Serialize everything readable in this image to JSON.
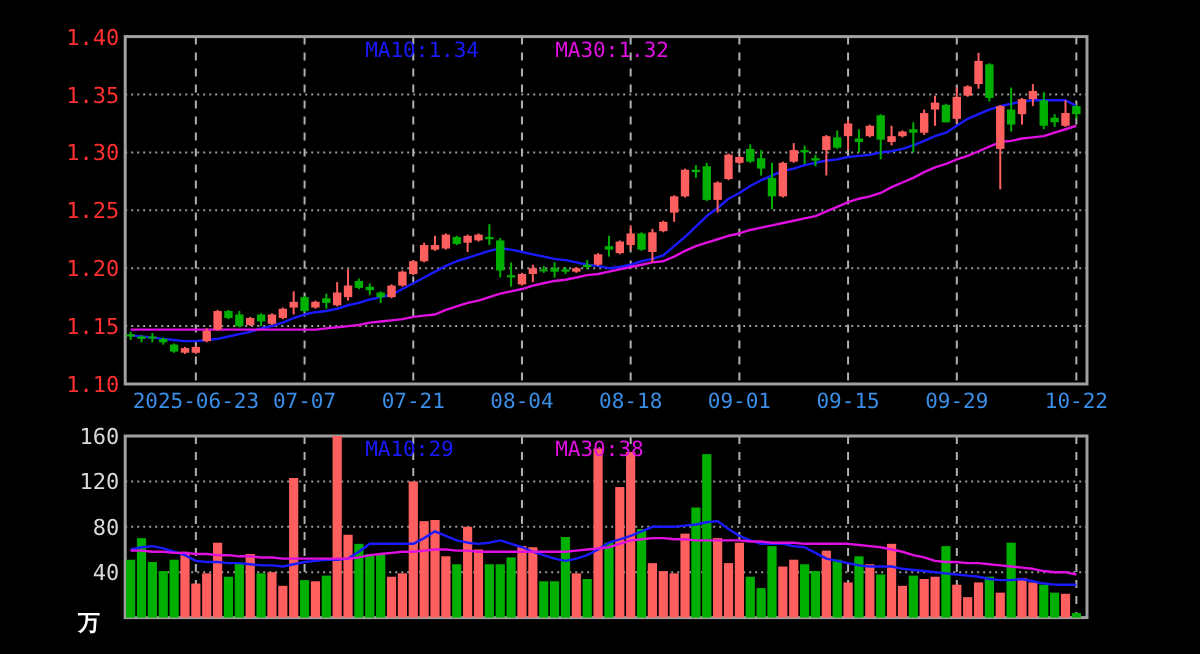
{
  "chart_data": [
    {
      "type": "candlestick",
      "grid": true,
      "legend": "top",
      "ylim": [
        1.1,
        1.4
      ],
      "yticks": [
        {
          "value": 1.1,
          "label": "1.10"
        },
        1.15,
        {
          "value": 1.2,
          "label": "1.20"
        },
        1.25,
        {
          "value": 1.3,
          "label": "1.30"
        },
        1.35,
        {
          "value": 1.4,
          "label": "1.40"
        }
      ],
      "categories": [
        null,
        null,
        null,
        null,
        null,
        null,
        "2025-06-23",
        null,
        null,
        null,
        null,
        null,
        null,
        null,
        null,
        null,
        "07-07",
        null,
        null,
        null,
        null,
        null,
        null,
        null,
        null,
        null,
        "07-21",
        null,
        null,
        null,
        null,
        null,
        null,
        null,
        null,
        null,
        "08-04",
        null,
        null,
        null,
        null,
        null,
        null,
        null,
        null,
        null,
        "08-18",
        null,
        null,
        null,
        null,
        null,
        null,
        null,
        null,
        null,
        "09-01",
        null,
        null,
        null,
        null,
        null,
        null,
        null,
        null,
        null,
        "09-15",
        null,
        null,
        null,
        null,
        null,
        null,
        null,
        null,
        null,
        "09-29",
        null,
        null,
        null,
        null,
        null,
        null,
        null,
        null,
        null,
        null,
        "10-22"
      ],
      "ohlc": [
        [
          1.143,
          1.145,
          1.138,
          1.141
        ],
        [
          1.141,
          1.142,
          1.136,
          1.139
        ],
        [
          1.141,
          1.144,
          1.136,
          1.14
        ],
        [
          1.139,
          1.14,
          1.134,
          1.136
        ],
        [
          1.134,
          1.135,
          1.127,
          1.128
        ],
        [
          1.127,
          1.132,
          1.126,
          1.131
        ],
        [
          1.127,
          1.133,
          1.126,
          1.132
        ],
        [
          1.137,
          1.148,
          1.136,
          1.146
        ],
        [
          1.147,
          1.164,
          1.146,
          1.163
        ],
        [
          1.163,
          1.164,
          1.156,
          1.157
        ],
        [
          1.16,
          1.163,
          1.149,
          1.15
        ],
        [
          1.151,
          1.158,
          1.15,
          1.157
        ],
        [
          1.16,
          1.161,
          1.15,
          1.154
        ],
        [
          1.152,
          1.161,
          1.151,
          1.16
        ],
        [
          1.157,
          1.166,
          1.156,
          1.165
        ],
        [
          1.166,
          1.18,
          1.16,
          1.171
        ],
        [
          1.175,
          1.176,
          1.162,
          1.163
        ],
        [
          1.166,
          1.172,
          1.165,
          1.171
        ],
        [
          1.174,
          1.178,
          1.165,
          1.17
        ],
        [
          1.168,
          1.188,
          1.167,
          1.179
        ],
        [
          1.175,
          1.199,
          1.172,
          1.185
        ],
        [
          1.189,
          1.191,
          1.182,
          1.183
        ],
        [
          1.184,
          1.187,
          1.177,
          1.181
        ],
        [
          1.179,
          1.18,
          1.17,
          1.175
        ],
        [
          1.175,
          1.186,
          1.174,
          1.185
        ],
        [
          1.185,
          1.198,
          1.184,
          1.197
        ],
        [
          1.195,
          1.207,
          1.194,
          1.206
        ],
        [
          1.206,
          1.222,
          1.205,
          1.22
        ],
        [
          1.216,
          1.228,
          1.215,
          1.22
        ],
        [
          1.217,
          1.23,
          1.216,
          1.229
        ],
        [
          1.227,
          1.228,
          1.22,
          1.221
        ],
        [
          1.222,
          1.229,
          1.214,
          1.228
        ],
        [
          1.224,
          1.23,
          1.223,
          1.229
        ],
        [
          1.227,
          1.238,
          1.22,
          1.225
        ],
        [
          1.224,
          1.226,
          1.192,
          1.198
        ],
        [
          1.194,
          1.205,
          1.184,
          1.192
        ],
        [
          1.186,
          1.196,
          1.185,
          1.195
        ],
        [
          1.195,
          1.203,
          1.188,
          1.2
        ],
        [
          1.199,
          1.202,
          1.196,
          1.198
        ],
        [
          1.2,
          1.205,
          1.192,
          1.197
        ],
        [
          1.199,
          1.201,
          1.195,
          1.197
        ],
        [
          1.197,
          1.201,
          1.196,
          1.2
        ],
        [
          1.203,
          1.207,
          1.199,
          1.201
        ],
        [
          1.203,
          1.213,
          1.202,
          1.212
        ],
        [
          1.219,
          1.228,
          1.21,
          1.216
        ],
        [
          1.213,
          1.224,
          1.212,
          1.223
        ],
        [
          1.22,
          1.237,
          1.216,
          1.23
        ],
        [
          1.23,
          1.231,
          1.215,
          1.216
        ],
        [
          1.214,
          1.234,
          1.205,
          1.231
        ],
        [
          1.232,
          1.241,
          1.231,
          1.24
        ],
        [
          1.248,
          1.263,
          1.24,
          1.262
        ],
        [
          1.262,
          1.286,
          1.261,
          1.285
        ],
        [
          1.285,
          1.289,
          1.278,
          1.283
        ],
        [
          1.288,
          1.291,
          1.258,
          1.259
        ],
        [
          1.259,
          1.275,
          1.248,
          1.274
        ],
        [
          1.277,
          1.299,
          1.276,
          1.298
        ],
        [
          1.291,
          1.297,
          1.29,
          1.296
        ],
        [
          1.303,
          1.307,
          1.291,
          1.292
        ],
        [
          1.295,
          1.302,
          1.28,
          1.286
        ],
        [
          1.278,
          1.291,
          1.251,
          1.262
        ],
        [
          1.262,
          1.292,
          1.261,
          1.291
        ],
        [
          1.292,
          1.308,
          1.291,
          1.302
        ],
        [
          1.302,
          1.306,
          1.29,
          1.3
        ],
        [
          1.295,
          1.298,
          1.288,
          1.293
        ],
        [
          1.302,
          1.315,
          1.28,
          1.314
        ],
        [
          1.313,
          1.319,
          1.303,
          1.304
        ],
        [
          1.314,
          1.328,
          1.302,
          1.325
        ],
        [
          1.312,
          1.32,
          1.3,
          1.309
        ],
        [
          1.314,
          1.324,
          1.313,
          1.323
        ],
        [
          1.332,
          1.333,
          1.294,
          1.311
        ],
        [
          1.309,
          1.323,
          1.306,
          1.314
        ],
        [
          1.314,
          1.319,
          1.313,
          1.318
        ],
        [
          1.32,
          1.326,
          1.3,
          1.317
        ],
        [
          1.317,
          1.337,
          1.315,
          1.334
        ],
        [
          1.337,
          1.349,
          1.323,
          1.343
        ],
        [
          1.341,
          1.342,
          1.326,
          1.326
        ],
        [
          1.329,
          1.356,
          1.326,
          1.348
        ],
        [
          1.349,
          1.358,
          1.348,
          1.357
        ],
        [
          1.359,
          1.386,
          1.355,
          1.379
        ],
        [
          1.376,
          1.377,
          1.344,
          1.347
        ],
        [
          1.303,
          1.341,
          1.268,
          1.34
        ],
        [
          1.337,
          1.356,
          1.318,
          1.324
        ],
        [
          1.333,
          1.347,
          1.324,
          1.346
        ],
        [
          1.346,
          1.359,
          1.34,
          1.353
        ],
        [
          1.345,
          1.352,
          1.32,
          1.323
        ],
        [
          1.33,
          1.333,
          1.322,
          1.326
        ],
        [
          1.323,
          1.345,
          1.322,
          1.334
        ],
        [
          1.34,
          1.341,
          1.329,
          1.333
        ]
      ],
      "colors": [
        "#00b000",
        "#00b000",
        "#00b000",
        "#00b000",
        "#00b000",
        "#ff5f5f",
        "#ff5f5f",
        "#ff5f5f",
        "#ff5f5f",
        "#00b000",
        "#00b000",
        "#ff5f5f",
        "#00b000",
        "#ff5f5f",
        "#ff5f5f",
        "#ff5f5f",
        "#00b000",
        "#ff5f5f",
        "#00b000",
        "#ff5f5f",
        "#ff5f5f",
        "#00b000",
        "#00b000",
        "#00b000",
        "#ff5f5f",
        "#ff5f5f",
        "#ff5f5f",
        "#ff5f5f",
        "#ff5f5f",
        "#ff5f5f",
        "#00b000",
        "#ff5f5f",
        "#ff5f5f",
        "#00b000",
        "#00b000",
        "#00b000",
        "#ff5f5f",
        "#ff5f5f",
        "#00b000",
        "#00b000",
        "#00b000",
        "#ff5f5f",
        "#00b000",
        "#ff5f5f",
        "#00b000",
        "#ff5f5f",
        "#ff5f5f",
        "#00b000",
        "#ff5f5f",
        "#ff5f5f",
        "#ff5f5f",
        "#ff5f5f",
        "#00b000",
        "#00b000",
        "#ff5f5f",
        "#ff5f5f",
        "#ff5f5f",
        "#00b000",
        "#00b000",
        "#00b000",
        "#ff5f5f",
        "#ff5f5f",
        "#00b000",
        "#00b000",
        "#ff5f5f",
        "#00b000",
        "#ff5f5f",
        "#00b000",
        "#ff5f5f",
        "#00b000",
        "#ff5f5f",
        "#ff5f5f",
        "#00b000",
        "#ff5f5f",
        "#ff5f5f",
        "#00b000",
        "#ff5f5f",
        "#ff5f5f",
        "#ff5f5f",
        "#00b000",
        "#ff5f5f",
        "#00b000",
        "#ff5f5f",
        "#ff5f5f",
        "#00b000",
        "#00b000",
        "#ff5f5f",
        "#00b000"
      ],
      "series": [
        {
          "type": "line",
          "name": "MA10:1.34",
          "color": "#1a1aff",
          "values": [
            1.142,
            1.141,
            1.14,
            1.139,
            1.138,
            1.137,
            1.137,
            1.138,
            1.139,
            1.141,
            1.143,
            1.145,
            1.148,
            1.15,
            1.153,
            1.157,
            1.16,
            1.162,
            1.163,
            1.165,
            1.168,
            1.17,
            1.173,
            1.175,
            1.177,
            1.182,
            1.187,
            1.192,
            1.197,
            1.202,
            1.206,
            1.209,
            1.212,
            1.215,
            1.217,
            1.216,
            1.214,
            1.212,
            1.21,
            1.208,
            1.207,
            1.205,
            1.203,
            1.202,
            1.2,
            1.201,
            1.203,
            1.206,
            1.208,
            1.211,
            1.219,
            1.227,
            1.236,
            1.245,
            1.252,
            1.26,
            1.265,
            1.271,
            1.276,
            1.28,
            1.284,
            1.286,
            1.289,
            1.291,
            1.293,
            1.294,
            1.296,
            1.297,
            1.298,
            1.3,
            1.301,
            1.303,
            1.306,
            1.31,
            1.314,
            1.317,
            1.323,
            1.329,
            1.333,
            1.337,
            1.34,
            1.342,
            1.344,
            1.345,
            1.345,
            1.345,
            1.345,
            1.34
          ]
        },
        {
          "type": "line",
          "name": "MA30:1.32",
          "color": "#e010e0",
          "values": [
            1.147,
            1.147,
            1.147,
            1.147,
            1.147,
            1.147,
            1.147,
            1.147,
            1.147,
            1.147,
            1.147,
            1.147,
            1.147,
            1.147,
            1.147,
            1.147,
            1.147,
            1.147,
            1.148,
            1.149,
            1.15,
            1.151,
            1.153,
            1.154,
            1.155,
            1.156,
            1.158,
            1.159,
            1.16,
            1.164,
            1.167,
            1.17,
            1.172,
            1.175,
            1.178,
            1.18,
            1.182,
            1.185,
            1.187,
            1.189,
            1.19,
            1.192,
            1.194,
            1.195,
            1.197,
            1.199,
            1.201,
            1.203,
            1.205,
            1.206,
            1.21,
            1.215,
            1.219,
            1.222,
            1.225,
            1.228,
            1.23,
            1.233,
            1.235,
            1.237,
            1.239,
            1.241,
            1.243,
            1.245,
            1.249,
            1.253,
            1.257,
            1.26,
            1.262,
            1.265,
            1.27,
            1.274,
            1.278,
            1.283,
            1.287,
            1.29,
            1.294,
            1.297,
            1.301,
            1.305,
            1.309,
            1.31,
            1.312,
            1.313,
            1.314,
            1.317,
            1.32,
            1.323
          ]
        }
      ]
    },
    {
      "type": "bar",
      "grid": true,
      "legend": "top",
      "ylabel": "万",
      "ylim": [
        0,
        160
      ],
      "yticks": [
        40,
        80,
        120,
        160
      ],
      "categories": [
        null,
        null,
        null,
        null,
        null,
        null,
        null,
        null,
        null,
        null,
        null,
        null,
        null,
        null,
        null,
        null,
        null,
        null,
        null,
        null,
        null,
        null,
        null,
        null,
        null,
        null,
        null,
        null,
        null,
        null,
        null,
        null,
        null,
        null,
        null,
        null,
        null,
        null,
        null,
        null,
        null,
        null,
        null,
        null,
        null,
        null,
        null,
        null,
        null,
        null,
        null,
        null,
        null,
        null,
        null,
        null,
        null,
        null,
        null,
        null,
        null,
        null,
        null,
        null,
        null,
        null,
        null,
        null,
        null,
        null,
        null,
        null,
        null,
        null,
        null,
        null,
        null,
        null,
        null,
        null,
        null,
        null,
        null,
        null,
        null,
        null,
        null,
        null
      ],
      "values": [
        51,
        70,
        49,
        41,
        51,
        58,
        30,
        39,
        66,
        36,
        48,
        56,
        39,
        40,
        28,
        123,
        33,
        32,
        37,
        160,
        73,
        65,
        56,
        56,
        36,
        39,
        120,
        85,
        86,
        54,
        47,
        80,
        60,
        47,
        47,
        53,
        63,
        62,
        32,
        32,
        71,
        39,
        34,
        149,
        66,
        115,
        146,
        78,
        48,
        41,
        39,
        74,
        97,
        144,
        70,
        48,
        66,
        36,
        26,
        63,
        45,
        51,
        47,
        41,
        59,
        51,
        31,
        54,
        47,
        38,
        65,
        28,
        37,
        34,
        36,
        63,
        29,
        18,
        31,
        36,
        22,
        66,
        35,
        31,
        29,
        22,
        21,
        4
      ],
      "colors": [
        "#00b000",
        "#00b000",
        "#00b000",
        "#00b000",
        "#00b000",
        "#ff5f5f",
        "#ff5f5f",
        "#ff5f5f",
        "#ff5f5f",
        "#00b000",
        "#00b000",
        "#ff5f5f",
        "#00b000",
        "#ff5f5f",
        "#ff5f5f",
        "#ff5f5f",
        "#00b000",
        "#ff5f5f",
        "#00b000",
        "#ff5f5f",
        "#ff5f5f",
        "#00b000",
        "#00b000",
        "#00b000",
        "#ff5f5f",
        "#ff5f5f",
        "#ff5f5f",
        "#ff5f5f",
        "#ff5f5f",
        "#ff5f5f",
        "#00b000",
        "#ff5f5f",
        "#ff5f5f",
        "#00b000",
        "#00b000",
        "#00b000",
        "#ff5f5f",
        "#ff5f5f",
        "#00b000",
        "#00b000",
        "#00b000",
        "#ff5f5f",
        "#00b000",
        "#ff5f5f",
        "#00b000",
        "#ff5f5f",
        "#ff5f5f",
        "#00b000",
        "#ff5f5f",
        "#ff5f5f",
        "#ff5f5f",
        "#ff5f5f",
        "#00b000",
        "#00b000",
        "#ff5f5f",
        "#ff5f5f",
        "#ff5f5f",
        "#00b000",
        "#00b000",
        "#00b000",
        "#ff5f5f",
        "#ff5f5f",
        "#00b000",
        "#00b000",
        "#ff5f5f",
        "#00b000",
        "#ff5f5f",
        "#00b000",
        "#ff5f5f",
        "#00b000",
        "#ff5f5f",
        "#ff5f5f",
        "#00b000",
        "#ff5f5f",
        "#ff5f5f",
        "#00b000",
        "#ff5f5f",
        "#ff5f5f",
        "#ff5f5f",
        "#00b000",
        "#ff5f5f",
        "#00b000",
        "#ff5f5f",
        "#ff5f5f",
        "#00b000",
        "#00b000",
        "#ff5f5f",
        "#00b000"
      ],
      "series": [
        {
          "type": "line",
          "name": "MA10:29",
          "color": "#1a1aff",
          "values": [
            60,
            62,
            63,
            61,
            58,
            55,
            50,
            49,
            49,
            48,
            48,
            47,
            46,
            46,
            45,
            47,
            49,
            50,
            51,
            51,
            52,
            58,
            65,
            65,
            65,
            65,
            65,
            70,
            76,
            72,
            68,
            66,
            65,
            66,
            68,
            65,
            62,
            58,
            55,
            52,
            50,
            52,
            55,
            60,
            66,
            69,
            72,
            76,
            80,
            80,
            80,
            81,
            82,
            84,
            85,
            78,
            72,
            68,
            65,
            65,
            65,
            63,
            62,
            57,
            52,
            50,
            48,
            46,
            45,
            45,
            45,
            43,
            42,
            41,
            40,
            39,
            38,
            37,
            36,
            34,
            33,
            33,
            34,
            32,
            30,
            29,
            29,
            29
          ]
        },
        {
          "type": "line",
          "name": "MA30:38",
          "color": "#e010e0",
          "values": [
            59,
            59,
            58,
            58,
            57,
            57,
            56,
            56,
            55,
            55,
            54,
            54,
            53,
            53,
            52,
            52,
            52,
            52,
            52,
            52,
            52,
            53,
            55,
            56,
            57,
            58,
            58,
            59,
            60,
            60,
            59,
            59,
            58,
            58,
            58,
            58,
            58,
            58,
            58,
            58,
            58,
            59,
            60,
            61,
            62,
            65,
            68,
            69,
            70,
            70,
            69,
            69,
            68,
            68,
            68,
            68,
            68,
            67,
            67,
            66,
            66,
            66,
            65,
            65,
            65,
            65,
            65,
            64,
            63,
            62,
            60,
            58,
            55,
            53,
            50,
            49,
            49,
            48,
            48,
            47,
            46,
            45,
            44,
            43,
            41,
            40,
            40,
            38
          ]
        }
      ]
    }
  ]
}
